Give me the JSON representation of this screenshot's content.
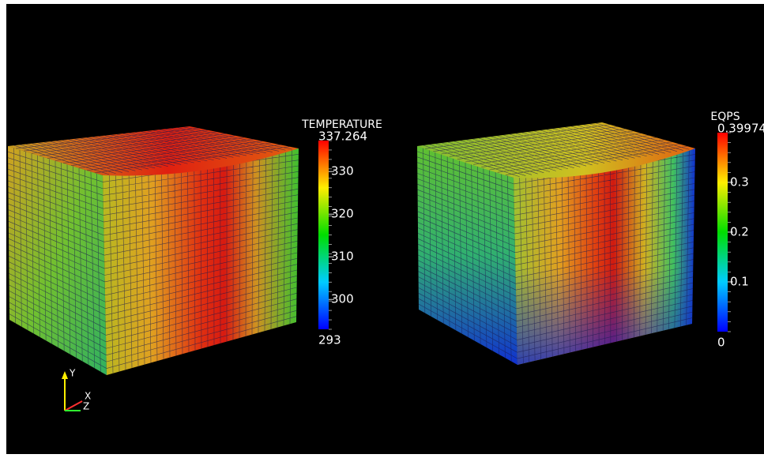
{
  "views": [
    {
      "colorbar": {
        "title": "TEMPERATURE",
        "max": 337.264,
        "min": 293,
        "ticks": [
          330,
          320,
          310,
          300
        ]
      }
    },
    {
      "colorbar": {
        "title": "EQPS",
        "max": 0.39974,
        "min": 0,
        "ticks": [
          0.3,
          0.2,
          0.1
        ]
      }
    }
  ],
  "axes": {
    "y": "Y",
    "x": "X",
    "z": "Z"
  }
}
